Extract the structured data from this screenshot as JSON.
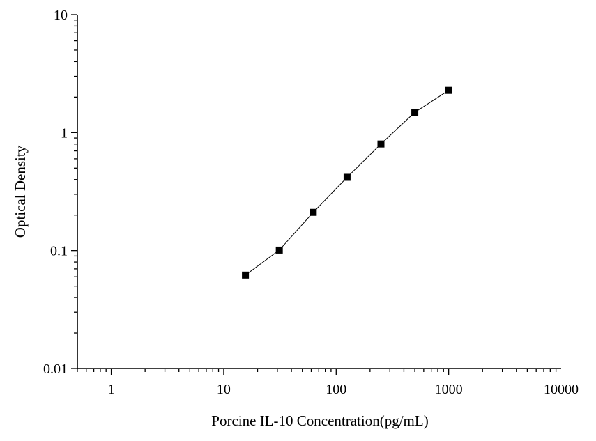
{
  "chart_data": {
    "type": "scatter",
    "title": "",
    "xlabel": "Porcine IL-10 Concentration(pg/mL)",
    "ylabel": "Optical Density",
    "x_scale": "log",
    "y_scale": "log",
    "xlim": [
      0.5,
      10000
    ],
    "ylim": [
      0.01,
      10
    ],
    "x_ticks": [
      {
        "value": 1,
        "label": "1"
      },
      {
        "value": 10,
        "label": "10"
      },
      {
        "value": 100,
        "label": "100"
      },
      {
        "value": 1000,
        "label": "1000"
      },
      {
        "value": 10000,
        "label": "10000"
      }
    ],
    "y_ticks": [
      {
        "value": 0.01,
        "label": "0.01"
      },
      {
        "value": 0.1,
        "label": "0.1"
      },
      {
        "value": 1,
        "label": "1"
      },
      {
        "value": 10,
        "label": "10"
      }
    ],
    "grid": false,
    "legend": "none",
    "series": [
      {
        "marker": "square",
        "connected": true,
        "color": "#000000",
        "x": [
          15.6,
          31.2,
          62.5,
          125,
          250,
          500,
          1000
        ],
        "y": [
          0.062,
          0.101,
          0.211,
          0.418,
          0.801,
          1.486,
          2.281
        ]
      }
    ]
  }
}
